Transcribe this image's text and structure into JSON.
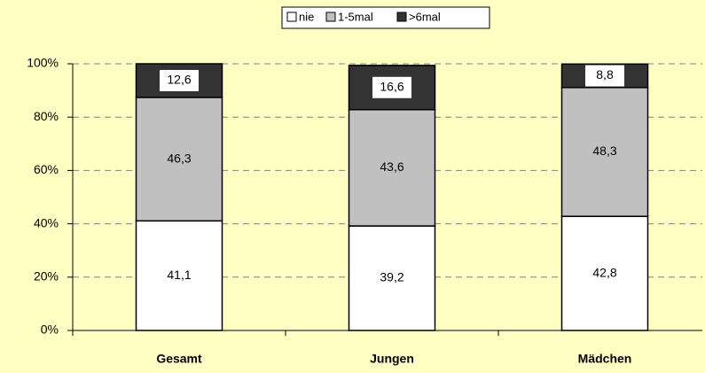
{
  "chart_data": {
    "type": "stacked_bar",
    "categories": [
      "Gesamt",
      "Jungen",
      "Mädchen"
    ],
    "series": [
      {
        "name": "nie",
        "color": "#ffffff",
        "values": [
          41.1,
          39.2,
          42.8
        ],
        "value_labels": [
          "41,1",
          "39,2",
          "42,8"
        ]
      },
      {
        "name": "1-5mal",
        "color": "#c0c0c0",
        "values": [
          46.3,
          43.6,
          48.3
        ],
        "value_labels": [
          "46,3",
          "43,6",
          "48,3"
        ]
      },
      {
        "name": ">6mal",
        "color": "#333333",
        "values": [
          12.6,
          16.6,
          8.8
        ],
        "value_labels": [
          "12,6",
          "16,6",
          "8,8"
        ]
      }
    ],
    "ylim": [
      0,
      100
    ],
    "yticks": [
      {
        "value": 0,
        "label": "0%"
      },
      {
        "value": 20,
        "label": "20%"
      },
      {
        "value": 40,
        "label": "40%"
      },
      {
        "value": 60,
        "label": "60%"
      },
      {
        "value": 80,
        "label": "80%"
      },
      {
        "value": 100,
        "label": "100%"
      }
    ],
    "grid": true,
    "legend": "top"
  }
}
